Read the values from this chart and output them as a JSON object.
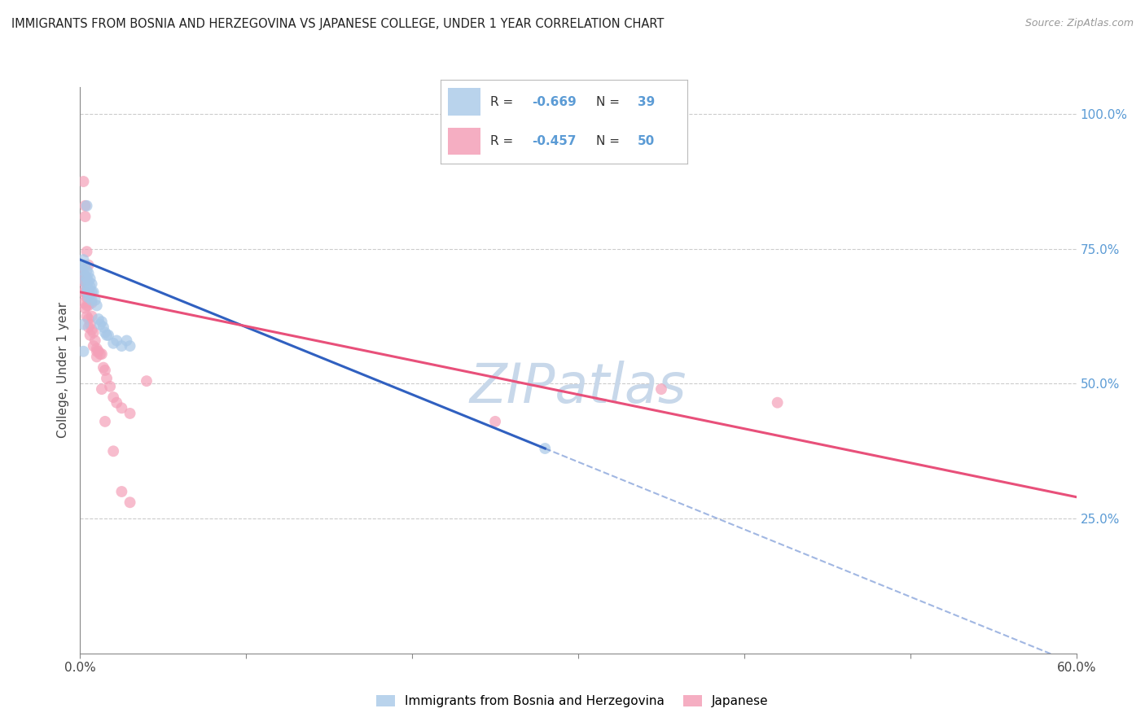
{
  "title": "IMMIGRANTS FROM BOSNIA AND HERZEGOVINA VS JAPANESE COLLEGE, UNDER 1 YEAR CORRELATION CHART",
  "source": "Source: ZipAtlas.com",
  "ylabel": "College, Under 1 year",
  "legend_label1": "Immigrants from Bosnia and Herzegovina",
  "legend_label2": "Japanese",
  "blue_color": "#a8c8e8",
  "pink_color": "#f4a0b8",
  "blue_line_color": "#3060c0",
  "pink_line_color": "#e8507a",
  "blue_scatter": [
    [
      0.001,
      0.72
    ],
    [
      0.002,
      0.73
    ],
    [
      0.002,
      0.71
    ],
    [
      0.003,
      0.72
    ],
    [
      0.003,
      0.7
    ],
    [
      0.003,
      0.69
    ],
    [
      0.004,
      0.71
    ],
    [
      0.004,
      0.695
    ],
    [
      0.004,
      0.68
    ],
    [
      0.004,
      0.67
    ],
    [
      0.005,
      0.705
    ],
    [
      0.005,
      0.69
    ],
    [
      0.005,
      0.675
    ],
    [
      0.005,
      0.66
    ],
    [
      0.006,
      0.695
    ],
    [
      0.006,
      0.68
    ],
    [
      0.006,
      0.665
    ],
    [
      0.007,
      0.685
    ],
    [
      0.007,
      0.67
    ],
    [
      0.007,
      0.655
    ],
    [
      0.008,
      0.67
    ],
    [
      0.009,
      0.655
    ],
    [
      0.01,
      0.645
    ],
    [
      0.011,
      0.62
    ],
    [
      0.012,
      0.61
    ],
    [
      0.013,
      0.615
    ],
    [
      0.014,
      0.605
    ],
    [
      0.015,
      0.595
    ],
    [
      0.016,
      0.59
    ],
    [
      0.017,
      0.59
    ],
    [
      0.02,
      0.575
    ],
    [
      0.022,
      0.58
    ],
    [
      0.025,
      0.57
    ],
    [
      0.028,
      0.58
    ],
    [
      0.03,
      0.57
    ],
    [
      0.002,
      0.61
    ],
    [
      0.002,
      0.56
    ],
    [
      0.004,
      0.83
    ],
    [
      0.28,
      0.38
    ]
  ],
  "pink_scatter": [
    [
      0.001,
      0.71
    ],
    [
      0.001,
      0.69
    ],
    [
      0.002,
      0.69
    ],
    [
      0.002,
      0.67
    ],
    [
      0.002,
      0.65
    ],
    [
      0.003,
      0.7
    ],
    [
      0.003,
      0.69
    ],
    [
      0.003,
      0.67
    ],
    [
      0.003,
      0.64
    ],
    [
      0.004,
      0.66
    ],
    [
      0.004,
      0.645
    ],
    [
      0.004,
      0.625
    ],
    [
      0.005,
      0.645
    ],
    [
      0.005,
      0.62
    ],
    [
      0.005,
      0.605
    ],
    [
      0.006,
      0.61
    ],
    [
      0.006,
      0.59
    ],
    [
      0.007,
      0.625
    ],
    [
      0.007,
      0.6
    ],
    [
      0.008,
      0.595
    ],
    [
      0.008,
      0.57
    ],
    [
      0.009,
      0.58
    ],
    [
      0.01,
      0.565
    ],
    [
      0.01,
      0.55
    ],
    [
      0.011,
      0.56
    ],
    [
      0.012,
      0.555
    ],
    [
      0.013,
      0.555
    ],
    [
      0.014,
      0.53
    ],
    [
      0.015,
      0.525
    ],
    [
      0.016,
      0.51
    ],
    [
      0.018,
      0.495
    ],
    [
      0.02,
      0.475
    ],
    [
      0.022,
      0.465
    ],
    [
      0.025,
      0.455
    ],
    [
      0.03,
      0.445
    ],
    [
      0.002,
      0.875
    ],
    [
      0.003,
      0.83
    ],
    [
      0.003,
      0.81
    ],
    [
      0.004,
      0.745
    ],
    [
      0.005,
      0.72
    ],
    [
      0.007,
      0.65
    ],
    [
      0.01,
      0.56
    ],
    [
      0.013,
      0.49
    ],
    [
      0.015,
      0.43
    ],
    [
      0.02,
      0.375
    ],
    [
      0.025,
      0.3
    ],
    [
      0.03,
      0.28
    ],
    [
      0.04,
      0.505
    ],
    [
      0.35,
      0.49
    ],
    [
      0.25,
      0.43
    ],
    [
      0.42,
      0.465
    ]
  ],
  "xmin": 0.0,
  "xmax": 0.6,
  "ymin": 0.0,
  "ymax": 1.05,
  "grid_color": "#cccccc",
  "watermark_color": "#c8d8ea",
  "right_axis_color": "#5b9bd5"
}
